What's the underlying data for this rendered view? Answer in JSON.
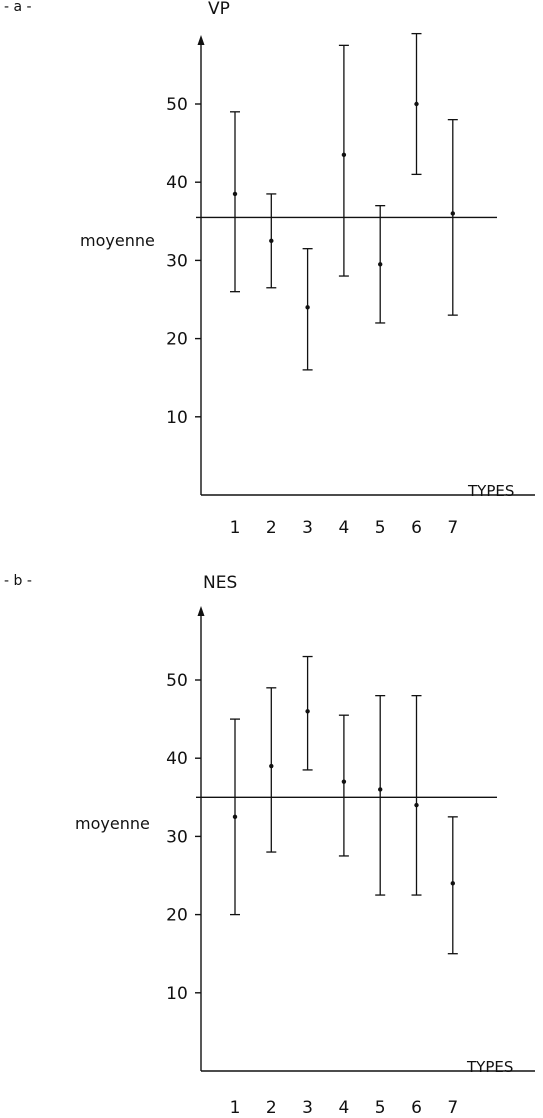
{
  "chart_data": [
    {
      "panel_label": "- a -",
      "type": "errorbar",
      "ylabel": "VP",
      "xlabel": "TYPES",
      "mean_label": "moyenne",
      "mean_value": 35.5,
      "ylim": [
        0,
        62
      ],
      "yticks": [
        10,
        20,
        30,
        40,
        50
      ],
      "categories": [
        "1",
        "2",
        "3",
        "4",
        "5",
        "6",
        "7"
      ],
      "points": [
        {
          "x": "1",
          "y": 38.5,
          "low": 26,
          "high": 49
        },
        {
          "x": "2",
          "y": 32.5,
          "low": 26.5,
          "high": 38.5
        },
        {
          "x": "3",
          "y": 24,
          "low": 16,
          "high": 31.5
        },
        {
          "x": "4",
          "y": 43.5,
          "low": 28,
          "high": 57.5
        },
        {
          "x": "5",
          "y": 29.5,
          "low": 22,
          "high": 37
        },
        {
          "x": "6",
          "y": 50,
          "low": 41,
          "high": 59
        },
        {
          "x": "7",
          "y": 36,
          "low": 23,
          "high": 48
        }
      ]
    },
    {
      "panel_label": "- b -",
      "type": "errorbar",
      "ylabel": "NES",
      "xlabel": "TYPES",
      "mean_label": "moyenne",
      "mean_value": 35,
      "ylim": [
        0,
        62
      ],
      "yticks": [
        10,
        20,
        30,
        40,
        50
      ],
      "categories": [
        "1",
        "2",
        "3",
        "4",
        "5",
        "6",
        "7"
      ],
      "points": [
        {
          "x": "1",
          "y": 32.5,
          "low": 20,
          "high": 45
        },
        {
          "x": "2",
          "y": 39,
          "low": 28,
          "high": 49
        },
        {
          "x": "3",
          "y": 46,
          "low": 38.5,
          "high": 53
        },
        {
          "x": "4",
          "y": 37,
          "low": 27.5,
          "high": 45.5
        },
        {
          "x": "5",
          "y": 36,
          "low": 22.5,
          "high": 48
        },
        {
          "x": "6",
          "y": 34,
          "low": 22.5,
          "high": 48
        },
        {
          "x": "7",
          "y": 24,
          "low": 15,
          "high": 32.5
        }
      ]
    }
  ]
}
